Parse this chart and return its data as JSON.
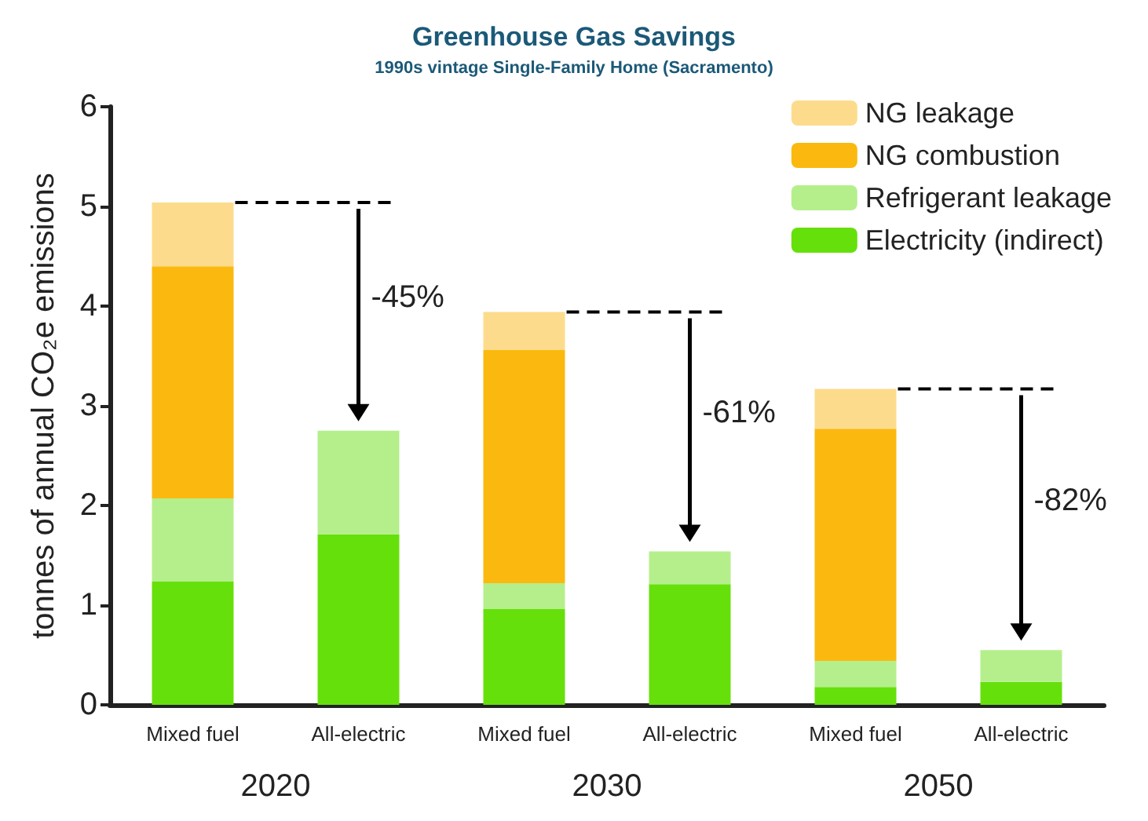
{
  "chart_data": {
    "type": "bar",
    "title": "Greenhouse Gas Savings",
    "subtitle": "1990s vintage Single-Family Home (Sacramento)",
    "ylabel": "tonnes of annual CO₂e emissions",
    "categories": [
      "Mixed fuel",
      "All-electric",
      "Mixed fuel",
      "All-electric",
      "Mixed fuel",
      "All-electric"
    ],
    "stacked": true,
    "series": [
      {
        "name": "Electricity (indirect)",
        "color": "#66e00b",
        "values": [
          1.24,
          1.71,
          0.96,
          1.21,
          0.18,
          0.23
        ]
      },
      {
        "name": "Refrigerant leakage",
        "color": "#b5ef8c",
        "values": [
          0.83,
          1.04,
          0.26,
          0.33,
          0.26,
          0.32
        ]
      },
      {
        "name": "NG combustion",
        "color": "#fbb90f",
        "values": [
          2.33,
          0,
          2.34,
          0,
          2.33,
          0
        ]
      },
      {
        "name": "NG leakage",
        "color": "#fcdc8c",
        "values": [
          0.64,
          0,
          0.38,
          0,
          0.4,
          0
        ]
      }
    ],
    "annotations": [
      "2020",
      "2030",
      "2050",
      "-45%",
      "-61%",
      "-82%"
    ],
    "ylim": [
      0,
      6
    ],
    "yticks": [
      0,
      1,
      2,
      3,
      4,
      5,
      6
    ],
    "grid": false,
    "legend": "top right"
  }
}
